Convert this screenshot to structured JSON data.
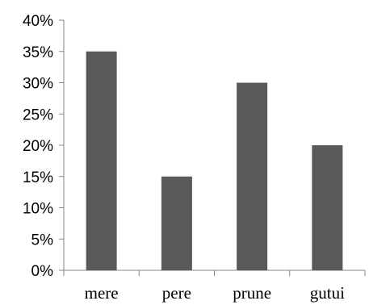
{
  "chart_data": {
    "type": "bar",
    "categories": [
      "mere",
      "pere",
      "prune",
      "gutui"
    ],
    "values": [
      35,
      15,
      30,
      20
    ],
    "ylim": [
      0,
      40
    ],
    "y_tick_step": 5,
    "y_tick_labels": [
      "0%",
      "5%",
      "10%",
      "15%",
      "20%",
      "25%",
      "30%",
      "35%",
      "40%"
    ],
    "grid": false,
    "legend": "none",
    "bar_color": "#595959",
    "axis_color": "#868686"
  }
}
